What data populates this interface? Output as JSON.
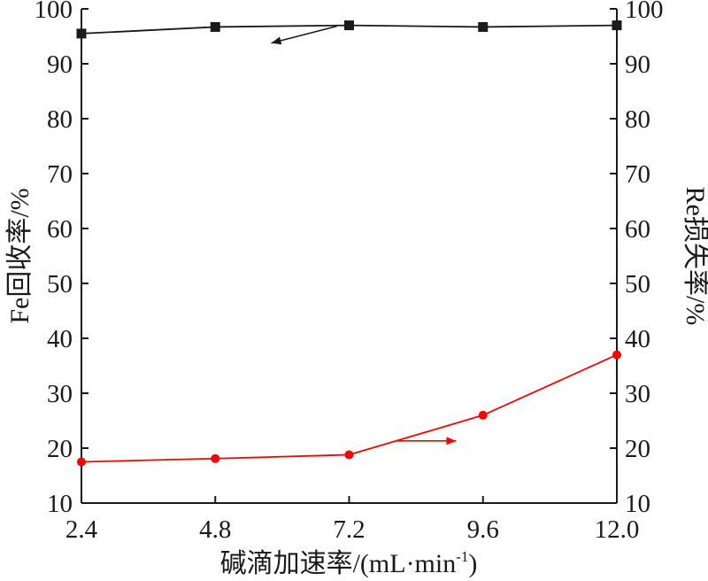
{
  "chart_data": {
    "type": "line",
    "x": [
      2.4,
      4.8,
      7.2,
      9.6,
      12.0
    ],
    "x_tick_labels": [
      "2.4",
      "4.8",
      "7.2",
      "9.6",
      "12.0"
    ],
    "xlim": [
      2.4,
      12.0
    ],
    "xlabel": "碱滴加速率/(mL·min",
    "xlabel_sup": "-1",
    "xlabel_end": ")",
    "ylim": [
      10,
      100
    ],
    "y_ticks": [
      10,
      20,
      30,
      40,
      50,
      60,
      70,
      80,
      90,
      100
    ],
    "y_tick_labels": [
      "10",
      "20",
      "30",
      "40",
      "50",
      "60",
      "70",
      "80",
      "90",
      "100"
    ],
    "ylabel_left": "Fe回收率/%",
    "ylabel_right": "Re损失率/%",
    "grid": false,
    "series": [
      {
        "axis": "left",
        "marker": "square",
        "color": "#1a1a1a",
        "values": [
          95.5,
          96.7,
          97.0,
          96.7,
          97.0
        ],
        "indicator": "arrow pointing to left axis"
      },
      {
        "axis": "right",
        "marker": "circle",
        "color": "#ff0000",
        "values": [
          17.5,
          18.1,
          18.8,
          26.0,
          37.0
        ],
        "indicator": "arrow pointing to right axis"
      }
    ]
  }
}
